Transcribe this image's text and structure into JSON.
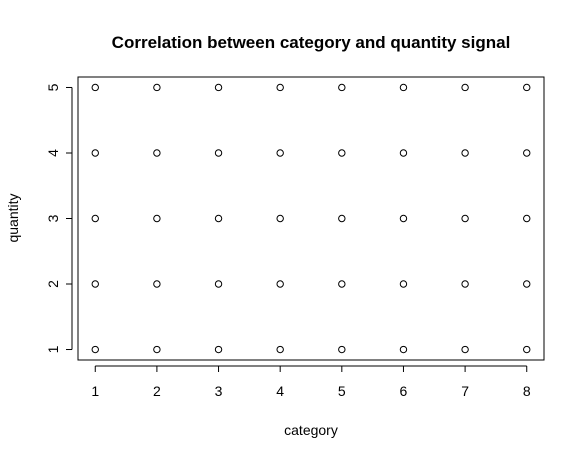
{
  "chart_data": {
    "type": "scatter",
    "title": "Correlation between category and quantity signal",
    "xlabel": "category",
    "ylabel": "quantity",
    "xlim": [
      0.72,
      8.28
    ],
    "ylim": [
      0.84,
      5.16
    ],
    "x_ticks": [
      1,
      2,
      3,
      4,
      5,
      6,
      7,
      8
    ],
    "y_ticks": [
      1,
      2,
      3,
      4,
      5
    ],
    "x_tick_labels": [
      "1",
      "2",
      "3",
      "4",
      "5",
      "6",
      "7",
      "8"
    ],
    "y_tick_labels": [
      "1",
      "2",
      "3",
      "4",
      "5"
    ],
    "grid": false,
    "marker": "open-circle",
    "marker_color": "#000000",
    "points": [
      {
        "x": 1,
        "y": 1
      },
      {
        "x": 1,
        "y": 2
      },
      {
        "x": 1,
        "y": 3
      },
      {
        "x": 1,
        "y": 4
      },
      {
        "x": 1,
        "y": 5
      },
      {
        "x": 2,
        "y": 1
      },
      {
        "x": 2,
        "y": 2
      },
      {
        "x": 2,
        "y": 3
      },
      {
        "x": 2,
        "y": 4
      },
      {
        "x": 2,
        "y": 5
      },
      {
        "x": 3,
        "y": 1
      },
      {
        "x": 3,
        "y": 2
      },
      {
        "x": 3,
        "y": 3
      },
      {
        "x": 3,
        "y": 4
      },
      {
        "x": 3,
        "y": 5
      },
      {
        "x": 4,
        "y": 1
      },
      {
        "x": 4,
        "y": 2
      },
      {
        "x": 4,
        "y": 3
      },
      {
        "x": 4,
        "y": 4
      },
      {
        "x": 4,
        "y": 5
      },
      {
        "x": 5,
        "y": 1
      },
      {
        "x": 5,
        "y": 2
      },
      {
        "x": 5,
        "y": 3
      },
      {
        "x": 5,
        "y": 4
      },
      {
        "x": 5,
        "y": 5
      },
      {
        "x": 6,
        "y": 1
      },
      {
        "x": 6,
        "y": 2
      },
      {
        "x": 6,
        "y": 3
      },
      {
        "x": 6,
        "y": 4
      },
      {
        "x": 6,
        "y": 5
      },
      {
        "x": 7,
        "y": 1
      },
      {
        "x": 7,
        "y": 2
      },
      {
        "x": 7,
        "y": 3
      },
      {
        "x": 7,
        "y": 4
      },
      {
        "x": 7,
        "y": 5
      },
      {
        "x": 8,
        "y": 1
      },
      {
        "x": 8,
        "y": 2
      },
      {
        "x": 8,
        "y": 3
      },
      {
        "x": 8,
        "y": 4
      },
      {
        "x": 8,
        "y": 5
      }
    ]
  }
}
